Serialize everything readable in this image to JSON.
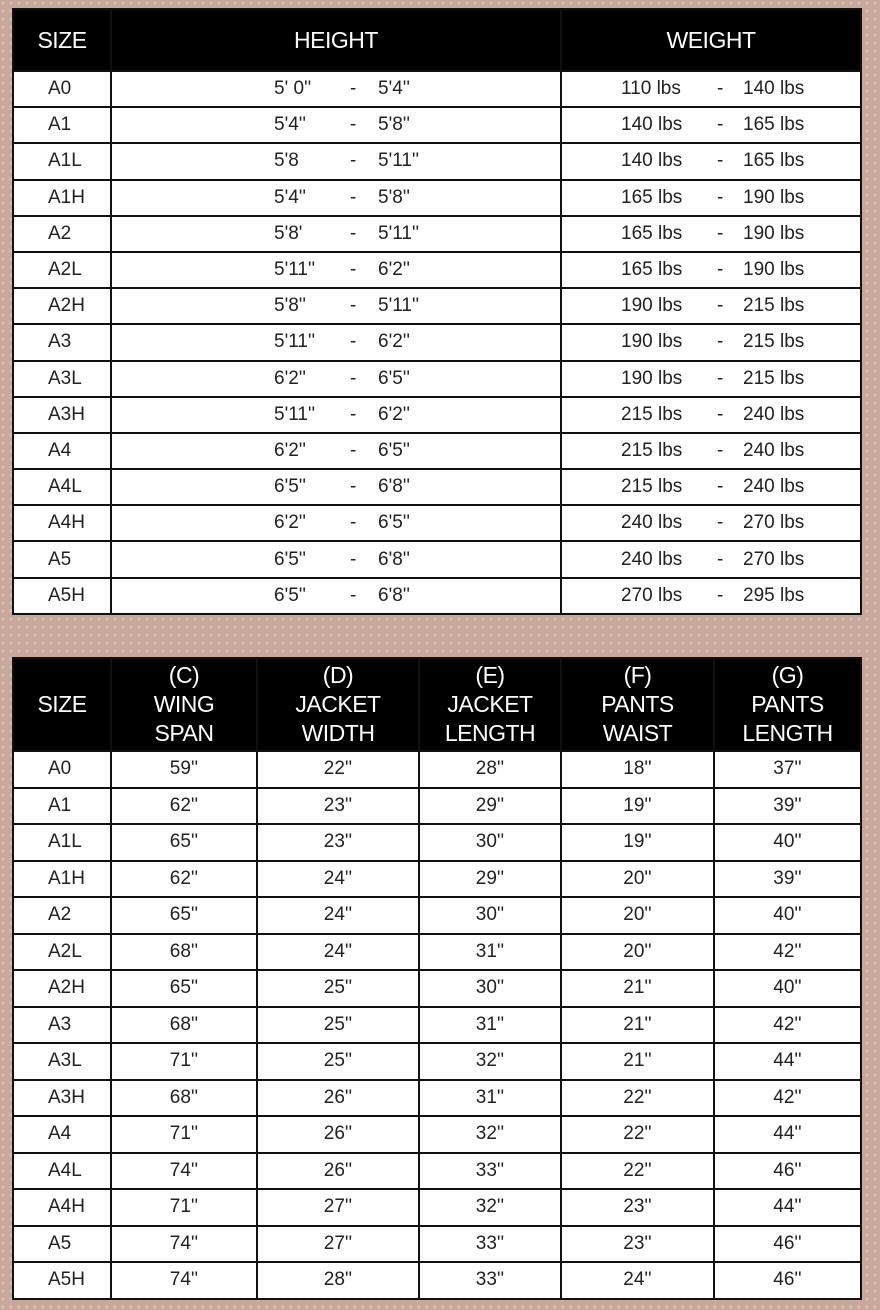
{
  "table1": {
    "headers": [
      "SIZE",
      "HEIGHT",
      "WEIGHT"
    ],
    "separator": "-",
    "rows": [
      {
        "size": "A0",
        "height_from": "5' 0''",
        "height_to": "5'4''",
        "weight_from": "110 lbs",
        "weight_to": "140 lbs"
      },
      {
        "size": "A1",
        "height_from": "5'4''",
        "height_to": "5'8''",
        "weight_from": "140 lbs",
        "weight_to": "165 lbs"
      },
      {
        "size": "A1L",
        "height_from": "5'8",
        "height_to": "5'11''",
        "weight_from": "140 lbs",
        "weight_to": "165 lbs"
      },
      {
        "size": "A1H",
        "height_from": "5'4''",
        "height_to": "5'8''",
        "weight_from": "165 lbs",
        "weight_to": "190 lbs"
      },
      {
        "size": "A2",
        "height_from": "5'8'",
        "height_to": "5'11''",
        "weight_from": "165 lbs",
        "weight_to": "190 lbs"
      },
      {
        "size": "A2L",
        "height_from": "5'11''",
        "height_to": "6'2''",
        "weight_from": "165 lbs",
        "weight_to": "190 lbs"
      },
      {
        "size": "A2H",
        "height_from": "5'8''",
        "height_to": "5'11''",
        "weight_from": "190 lbs",
        "weight_to": "215 lbs"
      },
      {
        "size": "A3",
        "height_from": "5'11''",
        "height_to": "6'2''",
        "weight_from": "190 lbs",
        "weight_to": "215 lbs"
      },
      {
        "size": "A3L",
        "height_from": "6'2''",
        "height_to": "6'5''",
        "weight_from": "190 lbs",
        "weight_to": "215 lbs"
      },
      {
        "size": "A3H",
        "height_from": "5'11''",
        "height_to": "6'2''",
        "weight_from": "215 lbs",
        "weight_to": "240 lbs"
      },
      {
        "size": "A4",
        "height_from": "6'2''",
        "height_to": "6'5''",
        "weight_from": "215 lbs",
        "weight_to": "240 lbs"
      },
      {
        "size": "A4L",
        "height_from": "6'5''",
        "height_to": "6'8''",
        "weight_from": "215 lbs",
        "weight_to": "240 lbs"
      },
      {
        "size": "A4H",
        "height_from": "6'2''",
        "height_to": "6'5''",
        "weight_from": "240 lbs",
        "weight_to": "270 lbs"
      },
      {
        "size": "A5",
        "height_from": "6'5''",
        "height_to": "6'8''",
        "weight_from": "240 lbs",
        "weight_to": "270 lbs"
      },
      {
        "size": "A5H",
        "height_from": "6'5''",
        "height_to": "6'8''",
        "weight_from": "270 lbs",
        "weight_to": "295 lbs"
      }
    ]
  },
  "table2": {
    "headers": [
      [
        "SIZE"
      ],
      [
        "(C)",
        "WING",
        "SPAN"
      ],
      [
        "(D)",
        "JACKET",
        "WIDTH"
      ],
      [
        "(E)",
        "JACKET",
        "LENGTH"
      ],
      [
        "(F)",
        "PANTS",
        "WAIST"
      ],
      [
        "(G)",
        "PANTS",
        "LENGTH"
      ]
    ],
    "rows": [
      [
        "A0",
        "59''",
        "22''",
        "28''",
        "18''",
        "37''"
      ],
      [
        "A1",
        "62''",
        "23''",
        "29''",
        "19''",
        "39''"
      ],
      [
        "A1L",
        "65''",
        "23''",
        "30''",
        "19''",
        "40''"
      ],
      [
        "A1H",
        "62''",
        "24''",
        "29''",
        "20''",
        "39''"
      ],
      [
        "A2",
        "65''",
        "24''",
        "30''",
        "20''",
        "40''"
      ],
      [
        "A2L",
        "68''",
        "24''",
        "31''",
        "20''",
        "42''"
      ],
      [
        "A2H",
        "65''",
        "25''",
        "30''",
        "21''",
        "40''"
      ],
      [
        "A3",
        "68''",
        "25''",
        "31''",
        "21''",
        "42''"
      ],
      [
        "A3L",
        "71''",
        "25''",
        "32''",
        "21''",
        "44''"
      ],
      [
        "A3H",
        "68''",
        "26''",
        "31''",
        "22''",
        "42''"
      ],
      [
        "A4",
        "71''",
        "26''",
        "32''",
        "22''",
        "44''"
      ],
      [
        "A4L",
        "74''",
        "26''",
        "33''",
        "22''",
        "46''"
      ],
      [
        "A4H",
        "71''",
        "27''",
        "32''",
        "23''",
        "44''"
      ],
      [
        "A5",
        "74''",
        "27''",
        "33''",
        "23''",
        "46''"
      ],
      [
        "A5H",
        "74''",
        "28''",
        "33''",
        "24''",
        "46''"
      ]
    ]
  }
}
